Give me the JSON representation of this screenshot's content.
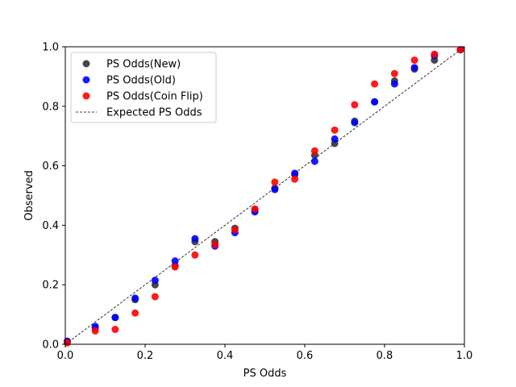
{
  "chart_data": {
    "type": "scatter",
    "xlabel": "PS Odds",
    "ylabel": "Observed",
    "xlim": [
      0,
      1
    ],
    "ylim": [
      0,
      1
    ],
    "xticks": [
      "0.0",
      "0.2",
      "0.4",
      "0.6",
      "0.8",
      "1.0"
    ],
    "yticks": [
      "0.0",
      "0.2",
      "0.4",
      "0.6",
      "0.8",
      "1.0"
    ],
    "grid": false,
    "legend_position": "upper-left",
    "series": [
      {
        "name": "PS Odds(New)",
        "color": "#333333",
        "x": [
          0.005,
          0.075,
          0.125,
          0.175,
          0.225,
          0.275,
          0.325,
          0.375,
          0.425,
          0.475,
          0.525,
          0.575,
          0.625,
          0.675,
          0.725,
          0.775,
          0.825,
          0.875,
          0.925,
          0.99
        ],
        "y": [
          0.01,
          0.055,
          0.09,
          0.15,
          0.2,
          0.265,
          0.345,
          0.345,
          0.39,
          0.45,
          0.525,
          0.57,
          0.635,
          0.675,
          0.75,
          0.815,
          0.885,
          0.925,
          0.955,
          0.99
        ]
      },
      {
        "name": "PS Odds(Old)",
        "color": "#0000ff",
        "x": [
          0.005,
          0.075,
          0.125,
          0.175,
          0.225,
          0.275,
          0.325,
          0.375,
          0.425,
          0.475,
          0.525,
          0.575,
          0.625,
          0.675,
          0.725,
          0.775,
          0.825,
          0.875,
          0.925,
          0.99
        ],
        "y": [
          0.01,
          0.06,
          0.09,
          0.155,
          0.215,
          0.28,
          0.355,
          0.33,
          0.375,
          0.445,
          0.52,
          0.575,
          0.615,
          0.69,
          0.745,
          0.815,
          0.875,
          0.93,
          0.97,
          0.99
        ]
      },
      {
        "name": "PS Odds(Coin Flip)",
        "color": "#ff0000",
        "x": [
          0.005,
          0.075,
          0.125,
          0.175,
          0.225,
          0.275,
          0.325,
          0.375,
          0.425,
          0.475,
          0.525,
          0.575,
          0.625,
          0.675,
          0.725,
          0.775,
          0.825,
          0.875,
          0.925,
          0.99
        ],
        "y": [
          0.005,
          0.045,
          0.05,
          0.105,
          0.16,
          0.26,
          0.3,
          0.335,
          0.385,
          0.455,
          0.545,
          0.555,
          0.65,
          0.72,
          0.805,
          0.875,
          0.91,
          0.955,
          0.975,
          0.99
        ]
      }
    ],
    "reference_line": {
      "name": "Expected PS Odds",
      "color": "#000000",
      "style": "dashed",
      "x": [
        0,
        1
      ],
      "y": [
        0,
        1
      ]
    }
  }
}
